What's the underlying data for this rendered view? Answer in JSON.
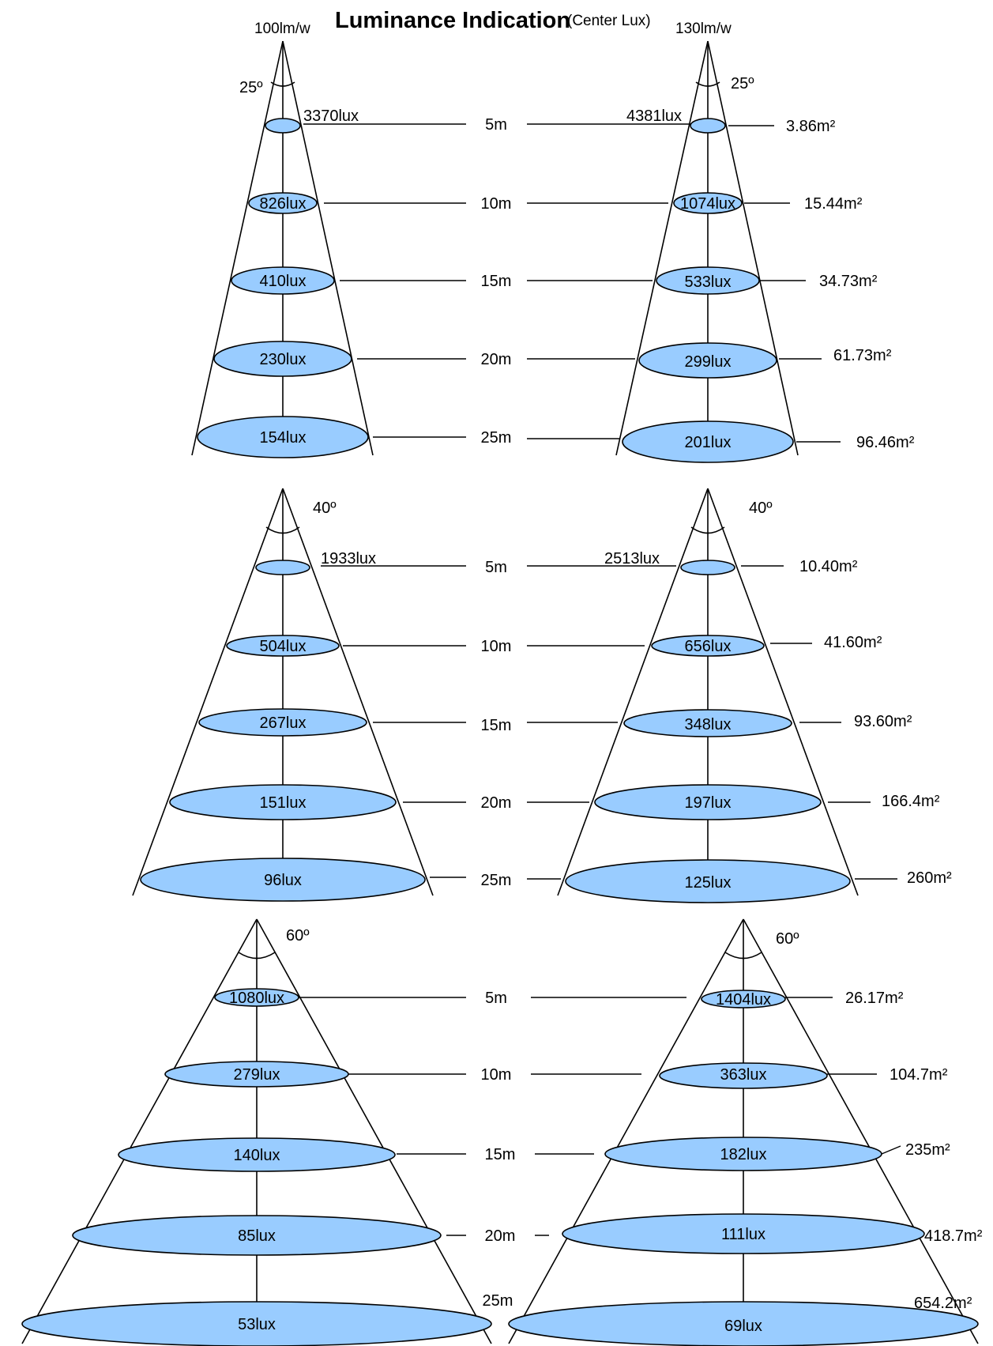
{
  "header": {
    "title": "Luminance Indication",
    "title_suffix": "(Center Lux)",
    "efficacy_left": "100lm/w",
    "efficacy_right": "130lm/w"
  },
  "diagrams": [
    {
      "angle": "25º",
      "left": {
        "lux": [
          "3370lux",
          "826lux",
          "410lux",
          "230lux",
          "154lux"
        ]
      },
      "right": {
        "lux": [
          "4381lux",
          "1074lux",
          "533lux",
          "299lux",
          "201lux"
        ],
        "area": [
          "3.86m²",
          "15.44m²",
          "34.73m²",
          "61.73m²",
          "96.46m²"
        ]
      },
      "distances": [
        "5m",
        "10m",
        "15m",
        "20m",
        "25m"
      ]
    },
    {
      "angle": "40º",
      "left": {
        "lux": [
          "1933lux",
          "504lux",
          "267lux",
          "151lux",
          "96lux"
        ]
      },
      "right": {
        "lux": [
          "2513lux",
          "656lux",
          "348lux",
          "197lux",
          "125lux"
        ],
        "area": [
          "10.40m²",
          "41.60m²",
          "93.60m²",
          "166.4m²",
          "260m²"
        ]
      },
      "distances": [
        "5m",
        "10m",
        "15m",
        "20m",
        "25m"
      ]
    },
    {
      "angle": "60º",
      "left": {
        "lux": [
          "1080lux",
          "279lux",
          "140lux",
          "85lux",
          "53lux"
        ]
      },
      "right": {
        "lux": [
          "1404lux",
          "363lux",
          "182lux",
          "111lux",
          "69lux"
        ],
        "area": [
          "26.17m²",
          "104.7m²",
          "235m²",
          "418.7m²",
          "654.2m²"
        ]
      },
      "distances": [
        "5m",
        "10m",
        "15m",
        "20m",
        "25m"
      ]
    }
  ]
}
